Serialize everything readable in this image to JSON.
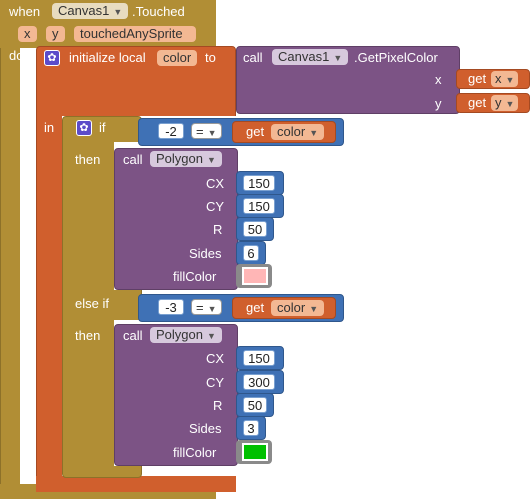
{
  "event": {
    "when_label": "when",
    "component": "Canvas1",
    "event_name": ".Touched",
    "params": [
      "x",
      "y",
      "touchedAnySprite"
    ],
    "do_label": "do"
  },
  "local": {
    "label": "initialize local",
    "var_name": "color",
    "to_label": "to",
    "in_label": "in"
  },
  "getpixel": {
    "call_label": "call",
    "component": "Canvas1",
    "method": ".GetPixelColor",
    "arg_x_label": "x",
    "arg_y_label": "y",
    "get_label": "get",
    "x_value": "x",
    "y_value": "y"
  },
  "ifblock": {
    "if_label": "if",
    "then_label": "then",
    "elseif_label": "else if",
    "then2_label": "then"
  },
  "cond1": {
    "number": "-2",
    "op": "=",
    "get_label": "get",
    "var": "color"
  },
  "cond2": {
    "number": "-3",
    "op": "=",
    "get_label": "get",
    "var": "color"
  },
  "poly1": {
    "call_label": "call",
    "component": "Polygon",
    "args": [
      {
        "label": "CX",
        "value": "150"
      },
      {
        "label": "CY",
        "value": "150"
      },
      {
        "label": "R",
        "value": "50"
      },
      {
        "label": "Sides",
        "value": "6"
      }
    ],
    "fill_label": "fillColor",
    "fill_color": "#ffb6b6"
  },
  "poly2": {
    "call_label": "call",
    "component": "Polygon",
    "args": [
      {
        "label": "CX",
        "value": "150"
      },
      {
        "label": "CY",
        "value": "300"
      },
      {
        "label": "R",
        "value": "50"
      },
      {
        "label": "Sides",
        "value": "3"
      }
    ],
    "fill_label": "fillColor",
    "fill_color": "#00c000"
  },
  "colors": {
    "event": "#b18e35",
    "local": "#d05f2d",
    "procedure": "#7c5385",
    "math": "#3f71b5"
  }
}
